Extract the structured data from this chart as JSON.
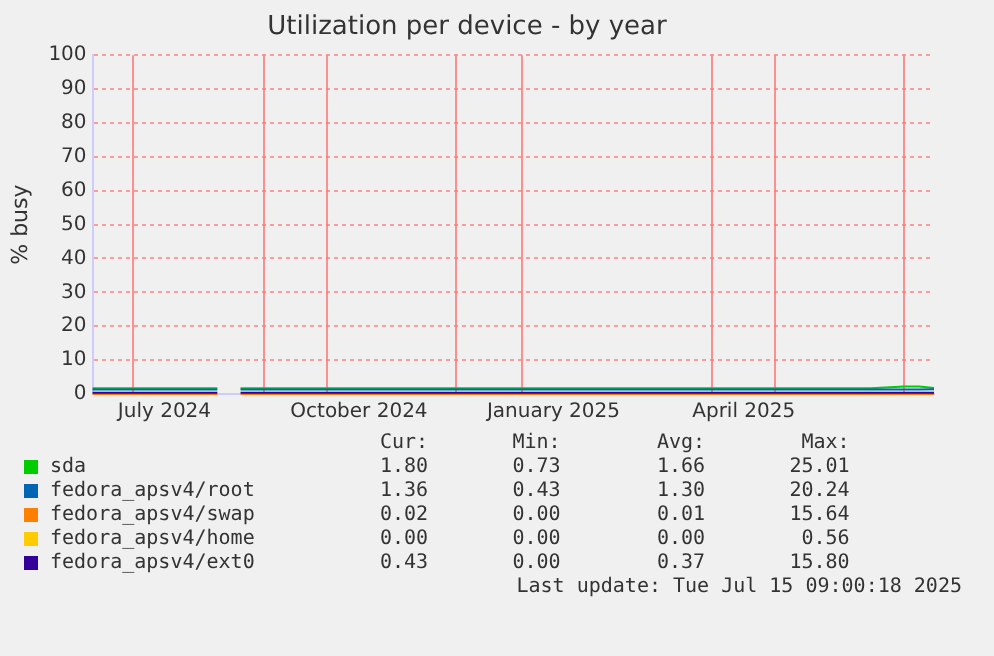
{
  "chart_data": {
    "type": "line",
    "title": "Utilization per device - by year",
    "ylabel": "% busy",
    "x": [
      "2024-06-12",
      "2024-07-01",
      "2024-07-20",
      "2024-08-10",
      "2024-08-15",
      "2024-08-21",
      "2024-09-15",
      "2024-10-15",
      "2024-11-15",
      "2024-12-15",
      "2025-01-15",
      "2025-02-15",
      "2025-03-15",
      "2025-04-15",
      "2025-05-15",
      "2025-06-15",
      "2025-07-01",
      "2025-07-08",
      "2025-07-15"
    ],
    "series": [
      {
        "name": "sda",
        "color": "#00cc00",
        "values": [
          1.7,
          1.7,
          1.7,
          1.7,
          null,
          1.7,
          1.7,
          1.7,
          1.7,
          1.7,
          1.7,
          1.7,
          1.7,
          1.7,
          1.7,
          1.7,
          2.2,
          2.2,
          1.8
        ]
      },
      {
        "name": "fedora_apsv4/root",
        "color": "#0066b3",
        "values": [
          1.3,
          1.3,
          1.3,
          1.3,
          null,
          1.3,
          1.3,
          1.3,
          1.3,
          1.3,
          1.3,
          1.3,
          1.3,
          1.3,
          1.3,
          1.3,
          1.3,
          1.3,
          1.4
        ]
      },
      {
        "name": "fedora_apsv4/swap",
        "color": "#ff8000",
        "values": [
          0,
          0,
          0,
          0,
          null,
          0,
          0,
          0,
          0,
          0,
          0,
          0,
          0,
          0,
          0,
          0,
          0,
          0,
          0
        ]
      },
      {
        "name": "fedora_apsv4/home",
        "color": "#ffcc00",
        "values": [
          null,
          null,
          null,
          null,
          null,
          null,
          null,
          null,
          null,
          null,
          null,
          null,
          null,
          null,
          null,
          null,
          null,
          null,
          null
        ]
      },
      {
        "name": "fedora_apsv4/ext0",
        "color": "#330099",
        "values": [
          0.4,
          0.4,
          0.4,
          0.4,
          null,
          0.4,
          0.4,
          0.4,
          0.4,
          0.4,
          0.4,
          0.4,
          0.4,
          0.4,
          0.4,
          0.4,
          0.4,
          0.4,
          0.4
        ]
      }
    ],
    "xlim": [
      "2024-06-12",
      "2025-07-15"
    ],
    "xticks": [
      {
        "value": "2024-07-01",
        "label": null
      },
      {
        "value": "2024-07-16",
        "label": "July 2024"
      },
      {
        "value": "2024-09-01",
        "label": null
      },
      {
        "value": "2024-10-01",
        "label": null
      },
      {
        "value": "2024-10-16",
        "label": "October 2024"
      },
      {
        "value": "2024-12-01",
        "label": null
      },
      {
        "value": "2025-01-01",
        "label": null
      },
      {
        "value": "2025-01-16",
        "label": "January 2025"
      },
      {
        "value": "2025-04-01",
        "label": null
      },
      {
        "value": "2025-04-16",
        "label": "April 2025"
      },
      {
        "value": "2025-05-01",
        "label": null
      },
      {
        "value": "2025-07-01",
        "label": null
      }
    ],
    "ylim": [
      0,
      100
    ],
    "yticks": [
      0,
      10,
      20,
      30,
      40,
      50,
      60,
      70,
      80,
      90,
      100
    ],
    "grid": true,
    "legend": "bottom",
    "line_style": "solid",
    "marker": "none",
    "annotations": [
      "Cur:       Min:        Avg:        Max:",
      "1.80       0.73        1.66       25.01",
      "1.36       0.43        1.30       20.24",
      "0.02       0.00        0.01       15.64",
      "0.00       0.00        0.00        0.56",
      "0.43       0.00        0.37       15.80",
      "Last update: Tue Jul 15 09:00:18 2025"
    ]
  }
}
